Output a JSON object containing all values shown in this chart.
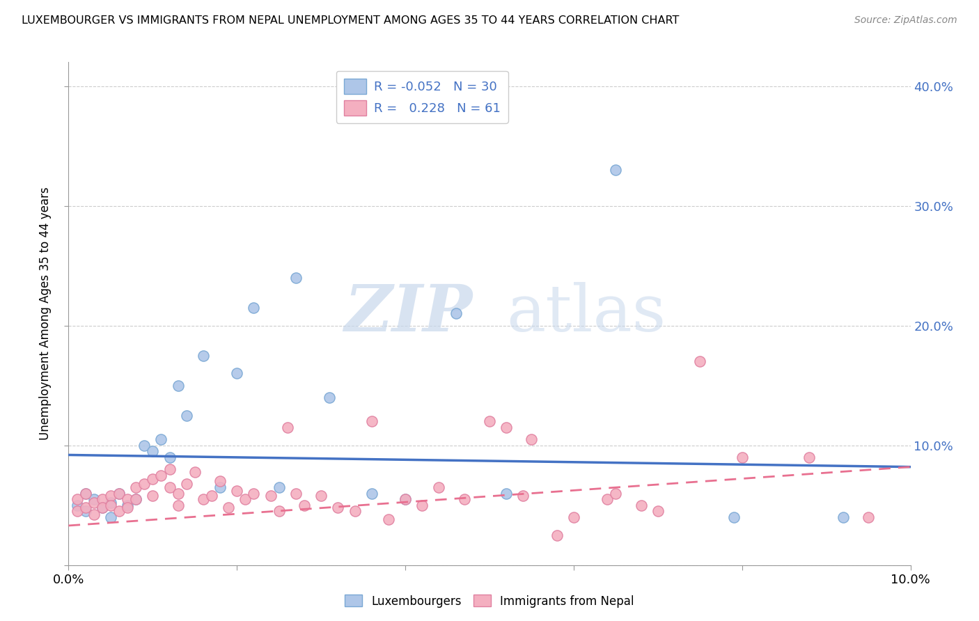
{
  "title": "LUXEMBOURGER VS IMMIGRANTS FROM NEPAL UNEMPLOYMENT AMONG AGES 35 TO 44 YEARS CORRELATION CHART",
  "source": "Source: ZipAtlas.com",
  "ylabel": "Unemployment Among Ages 35 to 44 years",
  "xlim": [
    0.0,
    0.1
  ],
  "ylim": [
    0.0,
    0.42
  ],
  "x_tick_positions": [
    0.0,
    0.02,
    0.04,
    0.06,
    0.08,
    0.1
  ],
  "x_tick_labels": [
    "0.0%",
    "",
    "",
    "",
    "",
    "10.0%"
  ],
  "y_tick_positions": [
    0.0,
    0.1,
    0.2,
    0.3,
    0.4
  ],
  "y_tick_labels_right": [
    "",
    "10.0%",
    "20.0%",
    "30.0%",
    "40.0%"
  ],
  "color_lux": "#aec6e8",
  "color_lux_edge": "#7aa8d4",
  "color_nepal": "#f4afc0",
  "color_nepal_edge": "#e080a0",
  "trend_color_lux": "#4472c4",
  "trend_color_nepal": "#e87090",
  "legend_lux_label": "Luxembourgers",
  "legend_nepal_label": "Immigrants from Nepal",
  "R_lux": "-0.052",
  "N_lux": "30",
  "R_nepal": "0.228",
  "N_nepal": "61",
  "watermark_zip": "ZIP",
  "watermark_atlas": "atlas",
  "lux_x": [
    0.001,
    0.002,
    0.002,
    0.003,
    0.004,
    0.005,
    0.005,
    0.006,
    0.007,
    0.008,
    0.009,
    0.01,
    0.011,
    0.012,
    0.013,
    0.014,
    0.016,
    0.018,
    0.02,
    0.022,
    0.025,
    0.027,
    0.031,
    0.036,
    0.04,
    0.046,
    0.052,
    0.065,
    0.079,
    0.092
  ],
  "lux_y": [
    0.05,
    0.045,
    0.06,
    0.055,
    0.048,
    0.052,
    0.04,
    0.06,
    0.05,
    0.055,
    0.1,
    0.095,
    0.105,
    0.09,
    0.15,
    0.125,
    0.175,
    0.065,
    0.16,
    0.215,
    0.065,
    0.24,
    0.14,
    0.06,
    0.055,
    0.21,
    0.06,
    0.33,
    0.04,
    0.04
  ],
  "nepal_x": [
    0.001,
    0.001,
    0.002,
    0.002,
    0.003,
    0.003,
    0.004,
    0.004,
    0.005,
    0.005,
    0.006,
    0.006,
    0.007,
    0.007,
    0.008,
    0.008,
    0.009,
    0.01,
    0.01,
    0.011,
    0.012,
    0.012,
    0.013,
    0.013,
    0.014,
    0.015,
    0.016,
    0.017,
    0.018,
    0.019,
    0.02,
    0.021,
    0.022,
    0.024,
    0.025,
    0.026,
    0.027,
    0.028,
    0.03,
    0.032,
    0.034,
    0.036,
    0.038,
    0.04,
    0.042,
    0.044,
    0.047,
    0.05,
    0.052,
    0.054,
    0.055,
    0.058,
    0.06,
    0.064,
    0.065,
    0.068,
    0.07,
    0.075,
    0.08,
    0.088,
    0.095
  ],
  "nepal_y": [
    0.055,
    0.045,
    0.06,
    0.048,
    0.052,
    0.042,
    0.055,
    0.048,
    0.058,
    0.05,
    0.06,
    0.045,
    0.055,
    0.048,
    0.065,
    0.055,
    0.068,
    0.072,
    0.058,
    0.075,
    0.08,
    0.065,
    0.06,
    0.05,
    0.068,
    0.078,
    0.055,
    0.058,
    0.07,
    0.048,
    0.062,
    0.055,
    0.06,
    0.058,
    0.045,
    0.115,
    0.06,
    0.05,
    0.058,
    0.048,
    0.045,
    0.12,
    0.038,
    0.055,
    0.05,
    0.065,
    0.055,
    0.12,
    0.115,
    0.058,
    0.105,
    0.025,
    0.04,
    0.055,
    0.06,
    0.05,
    0.045,
    0.17,
    0.09,
    0.09,
    0.04
  ],
  "lux_trend_x": [
    0.0,
    0.1
  ],
  "lux_trend_y": [
    0.092,
    0.082
  ],
  "nepal_trend_x": [
    0.0,
    0.1
  ],
  "nepal_trend_y": [
    0.033,
    0.082
  ]
}
